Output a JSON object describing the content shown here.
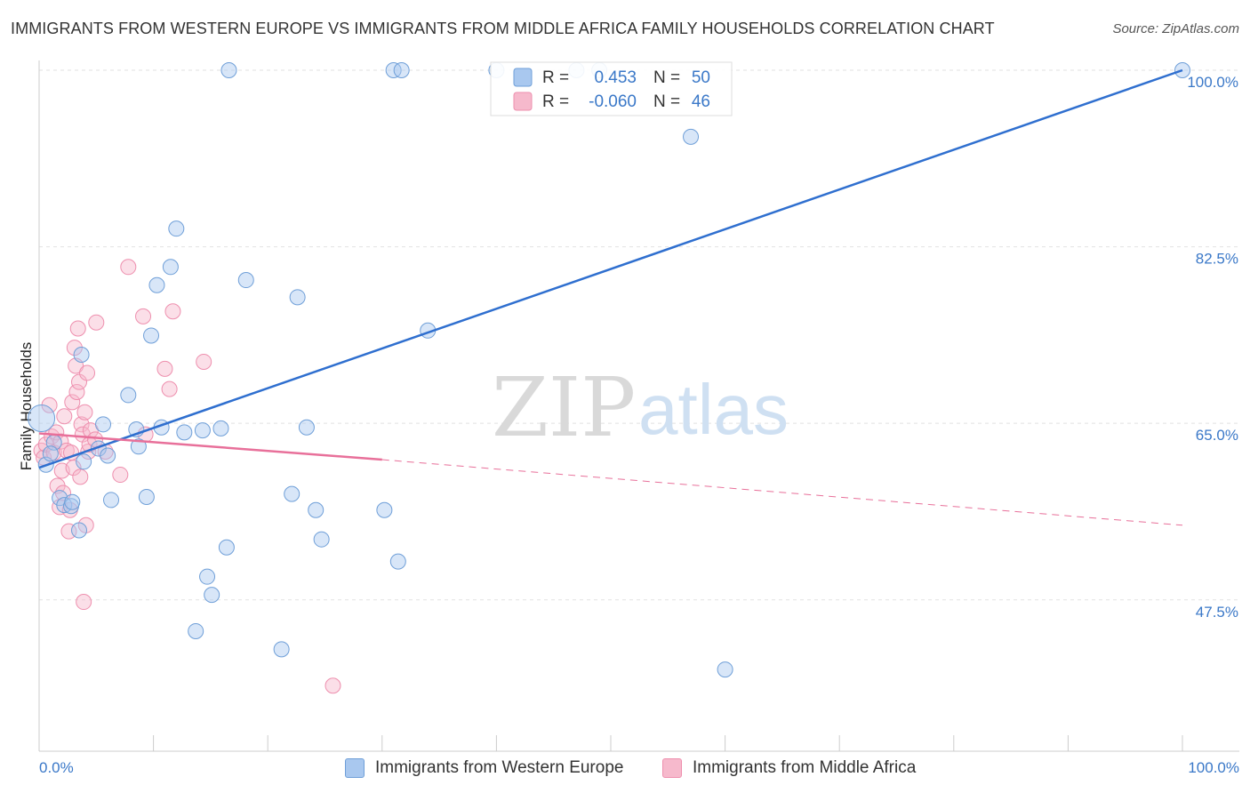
{
  "title": "IMMIGRANTS FROM WESTERN EUROPE VS IMMIGRANTS FROM MIDDLE AFRICA FAMILY HOUSEHOLDS CORRELATION CHART",
  "source": "Source: ZipAtlas.com",
  "watermark": {
    "zip": "ZIP",
    "atlas": "atlas"
  },
  "colors": {
    "blue_fill": "#a9c8ef",
    "blue_stroke": "#6f9fd8",
    "blue_line": "#2f6fcf",
    "pink_fill": "#f6b9cc",
    "pink_stroke": "#ee8fae",
    "pink_line": "#e8709a",
    "tick_text": "#3a78c8",
    "grid": "#e2e2e2"
  },
  "chart_data": {
    "type": "scatter",
    "title": "IMMIGRANTS FROM WESTERN EUROPE VS IMMIGRANTS FROM MIDDLE AFRICA FAMILY HOUSEHOLDS CORRELATION CHART",
    "xlabel": "",
    "ylabel": "Family Households",
    "xlim": [
      0,
      100
    ],
    "ylim": [
      32.5,
      101.5
    ],
    "y_ticks": [
      {
        "value": 47.5,
        "label": "47.5%"
      },
      {
        "value": 65.0,
        "label": "65.0%"
      },
      {
        "value": 82.5,
        "label": "82.5%"
      },
      {
        "value": 100.0,
        "label": "100.0%"
      }
    ],
    "x_tick_labels": {
      "left": "0.0%",
      "right": "100.0%"
    },
    "legend": {
      "r_label": "R =",
      "n_label": "N =",
      "entries": [
        {
          "r": "0.453",
          "n": "50"
        },
        {
          "r": "-0.060",
          "n": "46"
        }
      ]
    },
    "series": [
      {
        "name": "Immigrants from Western Europe",
        "color": "blue",
        "points": [
          [
            0.2,
            65.5
          ],
          [
            1.3,
            63.1
          ],
          [
            1.8,
            57.6
          ],
          [
            2.2,
            56.9
          ],
          [
            2.8,
            56.8
          ],
          [
            3.5,
            54.4
          ],
          [
            3.7,
            71.8
          ],
          [
            3.9,
            61.2
          ],
          [
            5.2,
            62.5
          ],
          [
            5.6,
            64.9
          ],
          [
            6.3,
            57.4
          ],
          [
            7.8,
            67.8
          ],
          [
            8.5,
            64.4
          ],
          [
            8.7,
            62.7
          ],
          [
            9.4,
            57.7
          ],
          [
            9.8,
            73.7
          ],
          [
            10.3,
            78.7
          ],
          [
            10.7,
            64.6
          ],
          [
            11.5,
            80.5
          ],
          [
            12.0,
            84.3
          ],
          [
            12.7,
            64.1
          ],
          [
            13.7,
            44.4
          ],
          [
            14.3,
            64.3
          ],
          [
            14.7,
            49.8
          ],
          [
            15.1,
            48.0
          ],
          [
            15.9,
            64.5
          ],
          [
            16.4,
            52.7
          ],
          [
            16.6,
            100.0
          ],
          [
            18.1,
            79.2
          ],
          [
            21.2,
            42.6
          ],
          [
            22.1,
            58.0
          ],
          [
            22.6,
            77.5
          ],
          [
            23.4,
            64.6
          ],
          [
            24.2,
            56.4
          ],
          [
            24.7,
            53.5
          ],
          [
            30.2,
            56.4
          ],
          [
            31.0,
            100.0
          ],
          [
            31.4,
            51.3
          ],
          [
            31.7,
            100.0
          ],
          [
            34.0,
            74.2
          ],
          [
            40.0,
            100.0
          ],
          [
            47.0,
            100.0
          ],
          [
            49.0,
            100.0
          ],
          [
            57.0,
            93.4
          ],
          [
            60.0,
            40.6
          ],
          [
            100.0,
            100.0
          ],
          [
            0.6,
            60.9
          ],
          [
            1.0,
            62.0
          ],
          [
            6.0,
            61.8
          ],
          [
            2.9,
            57.2
          ]
        ]
      },
      {
        "name": "Immigrants from Middle Africa",
        "color": "pink",
        "points": [
          [
            0.2,
            62.3
          ],
          [
            0.4,
            61.6
          ],
          [
            0.6,
            62.9
          ],
          [
            0.9,
            66.8
          ],
          [
            1.1,
            63.7
          ],
          [
            1.3,
            62.1
          ],
          [
            1.5,
            64.1
          ],
          [
            1.6,
            58.8
          ],
          [
            1.8,
            56.7
          ],
          [
            1.9,
            63.2
          ],
          [
            2.0,
            60.3
          ],
          [
            2.1,
            58.1
          ],
          [
            2.2,
            65.7
          ],
          [
            2.4,
            62.3
          ],
          [
            2.6,
            54.3
          ],
          [
            2.7,
            56.4
          ],
          [
            2.8,
            62.1
          ],
          [
            2.9,
            67.1
          ],
          [
            3.0,
            60.6
          ],
          [
            3.1,
            72.5
          ],
          [
            3.2,
            70.7
          ],
          [
            3.3,
            68.1
          ],
          [
            3.4,
            74.4
          ],
          [
            3.5,
            69.1
          ],
          [
            3.6,
            59.7
          ],
          [
            3.7,
            64.9
          ],
          [
            3.8,
            63.9
          ],
          [
            3.9,
            47.3
          ],
          [
            4.0,
            66.1
          ],
          [
            4.1,
            54.9
          ],
          [
            4.2,
            70.0
          ],
          [
            4.3,
            62.2
          ],
          [
            4.4,
            62.9
          ],
          [
            4.5,
            64.3
          ],
          [
            4.9,
            63.4
          ],
          [
            5.0,
            75.0
          ],
          [
            5.8,
            62.2
          ],
          [
            7.1,
            59.9
          ],
          [
            7.8,
            80.5
          ],
          [
            9.1,
            75.6
          ],
          [
            9.3,
            63.9
          ],
          [
            11.0,
            70.4
          ],
          [
            11.4,
            68.4
          ],
          [
            11.7,
            76.1
          ],
          [
            14.4,
            71.1
          ],
          [
            25.7,
            39.0
          ]
        ]
      }
    ],
    "trend_lines": [
      {
        "series": "Immigrants from Western Europe",
        "x": [
          0,
          100
        ],
        "y": [
          60.6,
          100.0
        ],
        "style": "solid"
      },
      {
        "series": "Immigrants from Middle Africa",
        "x": [
          0,
          30
        ],
        "y": [
          64.0,
          61.4
        ],
        "style": "solid"
      },
      {
        "series": "Immigrants from Middle Africa",
        "x": [
          30,
          100
        ],
        "y": [
          61.4,
          54.9
        ],
        "style": "dashed"
      }
    ]
  }
}
